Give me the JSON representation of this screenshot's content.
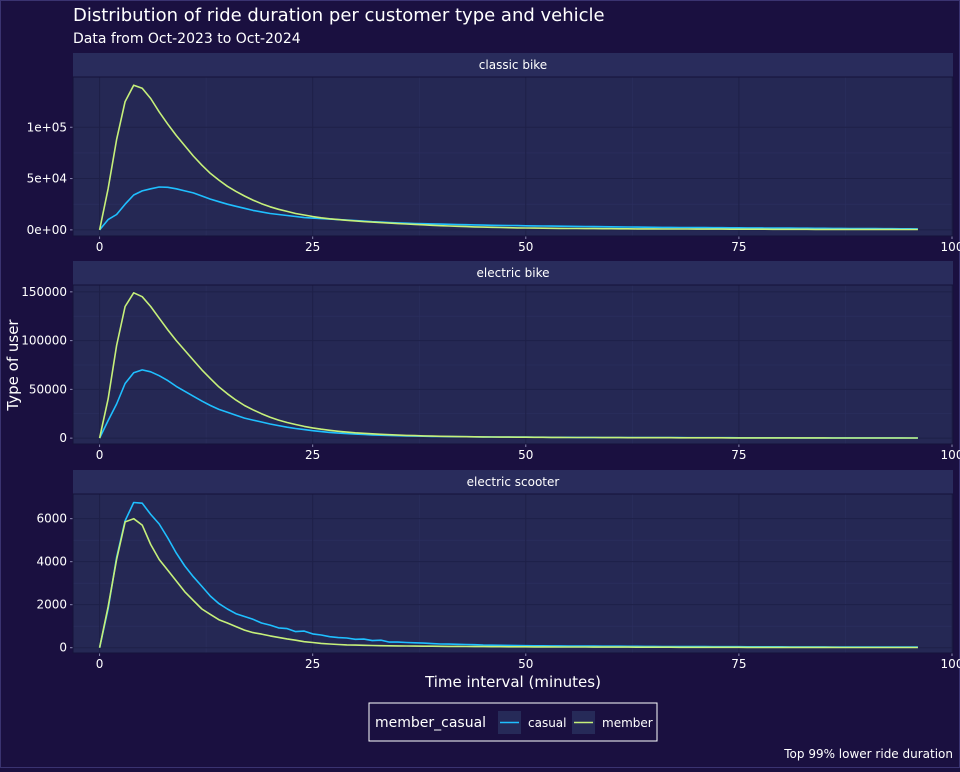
{
  "chart_data": {
    "type": "line",
    "title": "Distribution of ride duration per customer type and vehicle",
    "subtitle": "Data from Oct-2023 to Oct-2024",
    "xlabel": "Time interval (minutes)",
    "ylabel": "Type of user",
    "caption": "Top 99% lower ride duration",
    "legend": {
      "title": "member_casual",
      "position": "bottom"
    },
    "x": [
      0,
      1,
      2,
      3,
      4,
      5,
      6,
      7,
      8,
      9,
      10,
      11,
      12,
      13,
      14,
      15,
      16,
      17,
      18,
      19,
      20,
      21,
      22,
      23,
      24,
      25,
      26,
      27,
      28,
      29,
      30,
      31,
      32,
      33,
      34,
      35,
      36,
      37,
      38,
      39,
      40,
      41,
      42,
      43,
      44,
      45,
      46,
      47,
      48,
      49,
      50,
      51,
      52,
      53,
      54,
      55,
      56,
      57,
      58,
      59,
      60,
      61,
      62,
      63,
      64,
      65,
      66,
      67,
      68,
      69,
      70,
      71,
      72,
      73,
      74,
      75,
      76,
      77,
      78,
      79,
      80,
      81,
      82,
      83,
      84,
      85,
      86,
      87,
      88,
      89,
      90,
      91,
      92,
      93,
      94,
      95,
      96
    ],
    "xlim": [
      -3,
      100
    ],
    "xticks": [
      0,
      25,
      50,
      75,
      100
    ],
    "facets": [
      {
        "label": "classic bike",
        "ylim": [
          -5000,
          148000
        ],
        "yticks": [
          0,
          50000,
          100000
        ],
        "ytick_labels": [
          "0e+00",
          "5e+04",
          "1e+05"
        ],
        "series": [
          {
            "name": "casual",
            "color": "#1fbfff",
            "values": [
              0,
              10000,
              15000,
              25000,
              34000,
              38000,
              40000,
              41800,
              41500,
              40000,
              38000,
              36000,
              33000,
              30000,
              27500,
              25000,
              23000,
              21000,
              19000,
              17500,
              16000,
              15000,
              14000,
              13000,
              12000,
              11500,
              11000,
              10500,
              10000,
              9500,
              9000,
              8500,
              8000,
              7600,
              7200,
              6800,
              6500,
              6200,
              6000,
              5800,
              5600,
              5400,
              5200,
              5000,
              4800,
              4600,
              4500,
              4400,
              4300,
              4200,
              4000,
              3900,
              3800,
              3700,
              3600,
              3500,
              3400,
              3300,
              3200,
              3100,
              3000,
              2900,
              2800,
              2700,
              2600,
              2500,
              2450,
              2400,
              2350,
              2300,
              2250,
              2200,
              2150,
              2100,
              2050,
              2000,
              1950,
              1900,
              1850,
              1800,
              1750,
              1700,
              1650,
              1600,
              1550,
              1500,
              1450,
              1400,
              1350,
              1300,
              1250,
              1200,
              1150,
              1100,
              1050,
              1000,
              950
            ]
          },
          {
            "name": "member",
            "color": "#c6f07a",
            "values": [
              0,
              40000,
              88000,
              125000,
              141000,
              138000,
              128000,
              115000,
              103000,
              92000,
              82000,
              72000,
              63000,
              55000,
              48500,
              42500,
              37500,
              33000,
              29000,
              25500,
              22500,
              20000,
              18000,
              16000,
              14500,
              13000,
              11800,
              10800,
              10000,
              9300,
              8700,
              8100,
              7600,
              7100,
              6600,
              6100,
              5700,
              5300,
              4900,
              4500,
              4100,
              3800,
              3500,
              3200,
              2900,
              2700,
              2500,
              2300,
              2100,
              1950,
              1800,
              1700,
              1600,
              1500,
              1400,
              1350,
              1300,
              1250,
              1200,
              1150,
              1100,
              1060,
              1020,
              980,
              950,
              920,
              890,
              860,
              830,
              800,
              780,
              760,
              740,
              720,
              700,
              680,
              660,
              640,
              620,
              600,
              580,
              560,
              540,
              520,
              500,
              490,
              480,
              470,
              460,
              450,
              440,
              430,
              420,
              410,
              400,
              390,
              380
            ]
          }
        ]
      },
      {
        "label": "electric bike",
        "ylim": [
          -5000,
          156000
        ],
        "yticks": [
          0,
          50000,
          100000,
          150000
        ],
        "ytick_labels": [
          "0",
          "50000",
          "100000",
          "150000"
        ],
        "series": [
          {
            "name": "casual",
            "color": "#1fbfff",
            "values": [
              0,
              18000,
              35000,
              56000,
              67000,
              70000,
              68000,
              64000,
              59000,
              53000,
              48000,
              43000,
              38000,
              33500,
              29500,
              26500,
              23500,
              20500,
              18500,
              16500,
              14500,
              12800,
              11200,
              9900,
              8700,
              7600,
              6700,
              5900,
              5200,
              4600,
              4100,
              3700,
              3300,
              3000,
              2700,
              2500,
              2300,
              2100,
              1950,
              1800,
              1700,
              1600,
              1500,
              1420,
              1350,
              1280,
              1220,
              1160,
              1100,
              1050,
              1000,
              960,
              920,
              880,
              840,
              800,
              770,
              740,
              710,
              680,
              650,
              630,
              610,
              590,
              570,
              550,
              530,
              510,
              490,
              470,
              450,
              435,
              420,
              405,
              390,
              375,
              360,
              345,
              330,
              315,
              300,
              290,
              280,
              270,
              260,
              250,
              240,
              230,
              220,
              210,
              200,
              195,
              190,
              185,
              180,
              175,
              170
            ]
          },
          {
            "name": "member",
            "color": "#c6f07a",
            "values": [
              0,
              40000,
              95000,
              135000,
              149000,
              145000,
              135000,
              123000,
              111000,
              100000,
              90000,
              80000,
              70000,
              61000,
              52500,
              45500,
              39000,
              33500,
              29000,
              25000,
              21500,
              18500,
              16000,
              14000,
              12000,
              10500,
              9200,
              8000,
              7000,
              6200,
              5500,
              4900,
              4400,
              3900,
              3500,
              3100,
              2800,
              2550,
              2300,
              2100,
              1900,
              1750,
              1600,
              1480,
              1370,
              1270,
              1180,
              1100,
              1030,
              970,
              910,
              860,
              810,
              770,
              730,
              690,
              650,
              620,
              590,
              560,
              530,
              505,
              480,
              460,
              440,
              420,
              400,
              385,
              370,
              355,
              340,
              325,
              310,
              295,
              280,
              270,
              260,
              250,
              240,
              230,
              220,
              212,
              204,
              196,
              188,
              180,
              174,
              168,
              162,
              156,
              150,
              145,
              140,
              135,
              130,
              125,
              120
            ]
          }
        ]
      },
      {
        "label": "electric scooter",
        "ylim": [
          -200,
          7100
        ],
        "yticks": [
          0,
          2000,
          4000,
          6000
        ],
        "ytick_labels": [
          "0",
          "2000",
          "4000",
          "6000"
        ],
        "series": [
          {
            "name": "casual",
            "color": "#1fbfff",
            "values": [
              0,
              1800,
              4200,
              5900,
              6750,
              6720,
              6200,
              5750,
              5100,
              4400,
              3800,
              3300,
              2850,
              2400,
              2050,
              1800,
              1580,
              1450,
              1320,
              1150,
              1050,
              920,
              890,
              750,
              770,
              640,
              590,
              510,
              470,
              450,
              390,
              400,
              330,
              350,
              260,
              260,
              240,
              230,
              215,
              190,
              170,
              165,
              160,
              150,
              140,
              120,
              115,
              110,
              105,
              100,
              95,
              90,
              88,
              85,
              82,
              80,
              78,
              76,
              74,
              72,
              70,
              68,
              66,
              64,
              62,
              60,
              58,
              56,
              54,
              52,
              50,
              49,
              48,
              47,
              46,
              45,
              44,
              43,
              42,
              41,
              40,
              39,
              38,
              37,
              36,
              35,
              34,
              33,
              32,
              31,
              30,
              30,
              29,
              29,
              28,
              28,
              27
            ]
          },
          {
            "name": "member",
            "color": "#c6f07a",
            "values": [
              0,
              1900,
              4100,
              5850,
              6000,
              5700,
              4800,
              4100,
              3600,
              3100,
              2600,
              2200,
              1800,
              1550,
              1300,
              1150,
              980,
              820,
              700,
              630,
              550,
              480,
              410,
              350,
              280,
              240,
              200,
              170,
              150,
              130,
              120,
              110,
              100,
              95,
              90,
              85,
              80,
              76,
              72,
              68,
              65,
              62,
              59,
              56,
              53,
              50,
              48,
              46,
              44,
              42,
              40,
              38,
              36,
              35,
              34,
              33,
              32,
              31,
              30,
              29,
              28,
              27,
              26,
              25,
              24,
              23,
              22,
              21,
              20,
              20,
              19,
              19,
              18,
              18,
              17,
              17,
              16,
              16,
              15,
              15,
              14,
              14,
              13,
              13,
              12,
              12,
              12,
              11,
              11,
              11,
              10,
              10,
              10,
              9,
              9,
              9,
              8
            ]
          }
        ]
      }
    ]
  }
}
